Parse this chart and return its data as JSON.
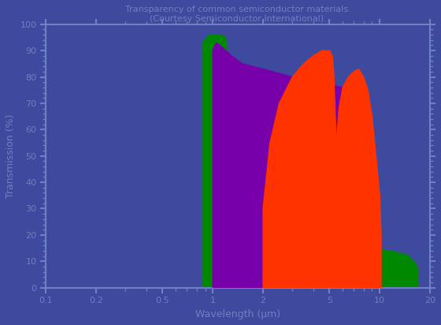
{
  "title": "Transparency of common semiconductor materials.\n(Courtesy Semiconductor International).",
  "xlabel": "Wavelength (μm)",
  "ylabel": "Transmission (%)",
  "xlim": [
    0.1,
    20
  ],
  "ylim": [
    0,
    100
  ],
  "bg_color": "#3d4a9e",
  "green_x": [
    0.87,
    0.87,
    0.95,
    1.1,
    1.2,
    1.3,
    1.5,
    2.0,
    2.5,
    3.0,
    4.0,
    5.0,
    6.0,
    7.0,
    8.0,
    9.0,
    10.0,
    11.0,
    12.0,
    13.0,
    14.0,
    15.0,
    16.0,
    16.8,
    17.0,
    17.0,
    16.0,
    14.0,
    12.0,
    10.0,
    9.0,
    8.5,
    7.0,
    6.0,
    5.0,
    4.0,
    3.0,
    2.5,
    2.0,
    1.5,
    1.1,
    0.95,
    0.87
  ],
  "green_y": [
    0,
    93,
    96,
    96,
    95,
    60,
    40,
    30,
    25,
    22,
    20,
    18,
    17,
    16,
    16,
    15,
    15,
    14,
    14,
    13,
    13,
    12,
    10,
    8,
    5,
    0,
    0,
    0,
    0,
    0,
    0,
    0,
    0,
    0,
    0,
    0,
    0,
    0,
    0,
    0,
    0,
    0,
    0
  ],
  "purple_x": [
    1.0,
    1.0,
    1.05,
    1.1,
    1.2,
    1.3,
    1.5,
    2.0,
    3.0,
    4.0,
    5.0,
    6.0,
    7.0,
    7.5,
    8.0,
    8.5,
    8.5,
    8.0,
    7.0,
    6.0,
    5.5,
    5.0,
    4.5,
    4.0,
    3.5,
    3.0,
    2.5,
    2.0,
    1.5,
    1.2,
    1.05,
    1.0
  ],
  "purple_y": [
    0,
    90,
    93,
    92,
    90,
    88,
    85,
    83,
    80,
    78,
    77,
    76,
    75,
    74,
    60,
    30,
    0,
    0,
    0,
    0,
    0,
    0,
    0,
    0,
    0,
    0,
    0,
    0,
    0,
    0,
    0,
    0
  ],
  "red_x": [
    2.0,
    2.0,
    2.2,
    2.5,
    3.0,
    3.5,
    4.0,
    4.5,
    5.0,
    5.2,
    5.3,
    5.5,
    5.5,
    5.3,
    5.2,
    5.0,
    4.5,
    4.0,
    3.5,
    3.0,
    2.5,
    2.2,
    2.0,
    5.5,
    5.5,
    5.7,
    6.0,
    6.5,
    7.0,
    7.5,
    8.0,
    8.5,
    9.0,
    9.5,
    10.0,
    10.2,
    10.2,
    10.0,
    9.5,
    9.0,
    8.5,
    8.0,
    7.5,
    7.0,
    6.5,
    6.0,
    5.7,
    5.5
  ],
  "red_y": [
    0,
    30,
    55,
    70,
    80,
    85,
    88,
    90,
    90,
    88,
    82,
    55,
    0,
    0,
    0,
    0,
    0,
    0,
    0,
    0,
    0,
    0,
    0,
    0,
    55,
    68,
    76,
    80,
    82,
    83,
    80,
    75,
    65,
    50,
    35,
    20,
    0,
    0,
    0,
    0,
    0,
    0,
    0,
    0,
    0,
    0,
    0,
    0
  ],
  "figsize": [
    5.6,
    4.12
  ],
  "dpi": 100
}
